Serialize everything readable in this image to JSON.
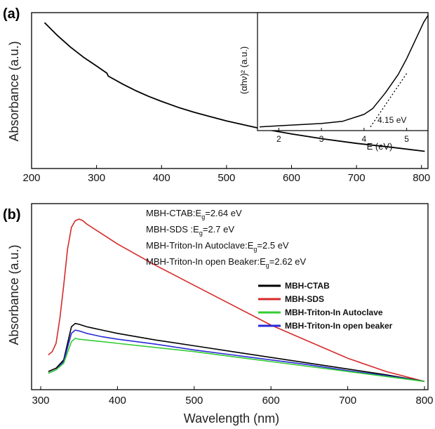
{
  "chart_data": [
    {
      "panel": "(a)",
      "type": "line",
      "xlabel": "",
      "ylabel": "Absorbance (a.u.)",
      "xlim": [
        200,
        810
      ],
      "xticks": [
        200,
        300,
        400,
        500,
        600,
        700,
        800
      ],
      "yticks_shown": false,
      "series": [
        {
          "color": "#000000",
          "x": [
            220,
            240,
            260,
            280,
            300,
            316,
            318,
            320,
            340,
            360,
            380,
            400,
            425,
            450,
            475,
            500,
            550,
            600,
            650,
            700,
            750,
            805
          ],
          "y": [
            0.97,
            0.88,
            0.8,
            0.73,
            0.67,
            0.62,
            0.6,
            0.595,
            0.545,
            0.5,
            0.46,
            0.425,
            0.385,
            0.35,
            0.32,
            0.29,
            0.24,
            0.2,
            0.165,
            0.135,
            0.11,
            0.08
          ]
        }
      ],
      "inset": {
        "type": "line",
        "xlabel": "E (eV)",
        "ylabel": "(αhν)² (a.u.)",
        "xlim": [
          1.5,
          5.5
        ],
        "xticks": [
          2,
          3,
          4,
          5
        ],
        "annotation": "4.15 eV",
        "series": [
          {
            "color": "#000000",
            "x": [
              1.55,
              2.0,
              2.5,
              3.0,
              3.5,
              4.0,
              4.2,
              4.5,
              4.8,
              5.0,
              5.2,
              5.4,
              5.5
            ],
            "y": [
              0.02,
              0.03,
              0.04,
              0.05,
              0.07,
              0.13,
              0.18,
              0.32,
              0.48,
              0.62,
              0.78,
              0.94,
              1.0
            ]
          },
          {
            "color": "#000000",
            "dashed": true,
            "x": [
              4.15,
              5.0
            ],
            "y": [
              0.02,
              0.49
            ]
          }
        ]
      }
    },
    {
      "panel": "(b)",
      "type": "line",
      "xlabel": "Wavelength (nm)",
      "ylabel": "Absorbance (a.u.)",
      "xlim": [
        300,
        800
      ],
      "xticks": [
        300,
        400,
        500,
        600,
        700,
        800
      ],
      "yticks_shown": false,
      "annotations": [
        {
          "prefix": "MBH-CTAB:E",
          "sub": "g",
          "suffix": "=2.64 eV"
        },
        {
          "prefix": "MBH-SDS :E",
          "sub": "g",
          "suffix": "=2.7 eV"
        },
        {
          "prefix": "MBH-Triton-In Autoclave:E",
          "sub": "g",
          "suffix": "=2.5 eV"
        },
        {
          "prefix": "MBH-Triton-In open Beaker:E",
          "sub": "g",
          "suffix": "=2.62 eV"
        }
      ],
      "legend_position": "right",
      "series": [
        {
          "name": "MBH-CTAB",
          "color": "#000000",
          "x": [
            310,
            320,
            330,
            340,
            345,
            350,
            360,
            380,
            400,
            450,
            500,
            550,
            600,
            650,
            700,
            750,
            800
          ],
          "y": [
            0.08,
            0.1,
            0.15,
            0.35,
            0.37,
            0.365,
            0.35,
            0.33,
            0.31,
            0.27,
            0.235,
            0.2,
            0.165,
            0.13,
            0.095,
            0.06,
            0.02
          ]
        },
        {
          "name": "MBH-SDS",
          "color": "#d62a2a",
          "x": [
            310,
            315,
            320,
            325,
            330,
            335,
            340,
            345,
            350,
            355,
            360,
            380,
            400,
            450,
            500,
            550,
            600,
            650,
            700,
            750,
            800
          ],
          "y": [
            0.18,
            0.2,
            0.25,
            0.4,
            0.6,
            0.82,
            0.95,
            0.99,
            1.0,
            0.99,
            0.97,
            0.91,
            0.85,
            0.72,
            0.6,
            0.48,
            0.36,
            0.26,
            0.16,
            0.08,
            0.02
          ]
        },
        {
          "name": "MBH-Triton-In Autoclave",
          "color": "#33cc33",
          "x": [
            310,
            320,
            330,
            340,
            345,
            350,
            360,
            380,
            400,
            450,
            500,
            550,
            600,
            650,
            700,
            750,
            800
          ],
          "y": [
            0.07,
            0.09,
            0.13,
            0.26,
            0.28,
            0.275,
            0.27,
            0.26,
            0.25,
            0.225,
            0.2,
            0.17,
            0.14,
            0.11,
            0.08,
            0.05,
            0.02
          ]
        },
        {
          "name": "MBH-Triton-In open beaker",
          "color": "#2a2ad6",
          "x": [
            310,
            320,
            330,
            340,
            345,
            350,
            360,
            380,
            400,
            450,
            500,
            550,
            600,
            650,
            700,
            750,
            800
          ],
          "y": [
            0.07,
            0.09,
            0.14,
            0.31,
            0.33,
            0.325,
            0.31,
            0.29,
            0.275,
            0.245,
            0.21,
            0.18,
            0.15,
            0.12,
            0.085,
            0.055,
            0.02
          ]
        }
      ]
    }
  ]
}
